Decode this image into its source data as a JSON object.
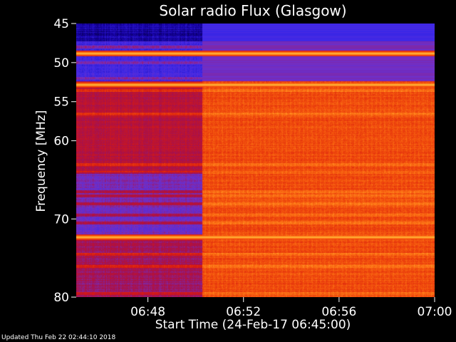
{
  "chart_data": {
    "type": "heatmap",
    "title": "Solar radio Flux (Glasgow)",
    "xlabel": "Start Time (24-Feb-17 06:45:00)",
    "ylabel": "Frequency [MHz]",
    "xlim": [
      "06:45",
      "07:00"
    ],
    "ylim": [
      45,
      80
    ],
    "x_tick_labels": [
      "06:48",
      "06:52",
      "06:56",
      "07:00"
    ],
    "x_ticks_minutes_after_start": [
      3,
      7,
      11,
      15
    ],
    "y_ticks": [
      45,
      50,
      55,
      60,
      70,
      80
    ],
    "transition_time": "06:50:15",
    "bright_bands_mhz": [
      48.8,
      52.8,
      72.3
    ],
    "emission_lines_mhz": [
      48.0,
      50.0,
      52.0,
      53.5,
      56.5,
      63.0,
      64.0,
      66.5,
      67.0,
      68.0,
      69.5,
      70.5,
      74.5,
      76.0,
      79.5
    ],
    "colormap": [
      "#00001a",
      "#1400a0",
      "#3c28e8",
      "#7030c8",
      "#a8104a",
      "#d81a10",
      "#f04a0c",
      "#ff7e18",
      "#ffc040",
      "#ffffb0"
    ]
  },
  "footer": {
    "updated": "Updated Thu Feb 22 02:44:10 2018"
  }
}
